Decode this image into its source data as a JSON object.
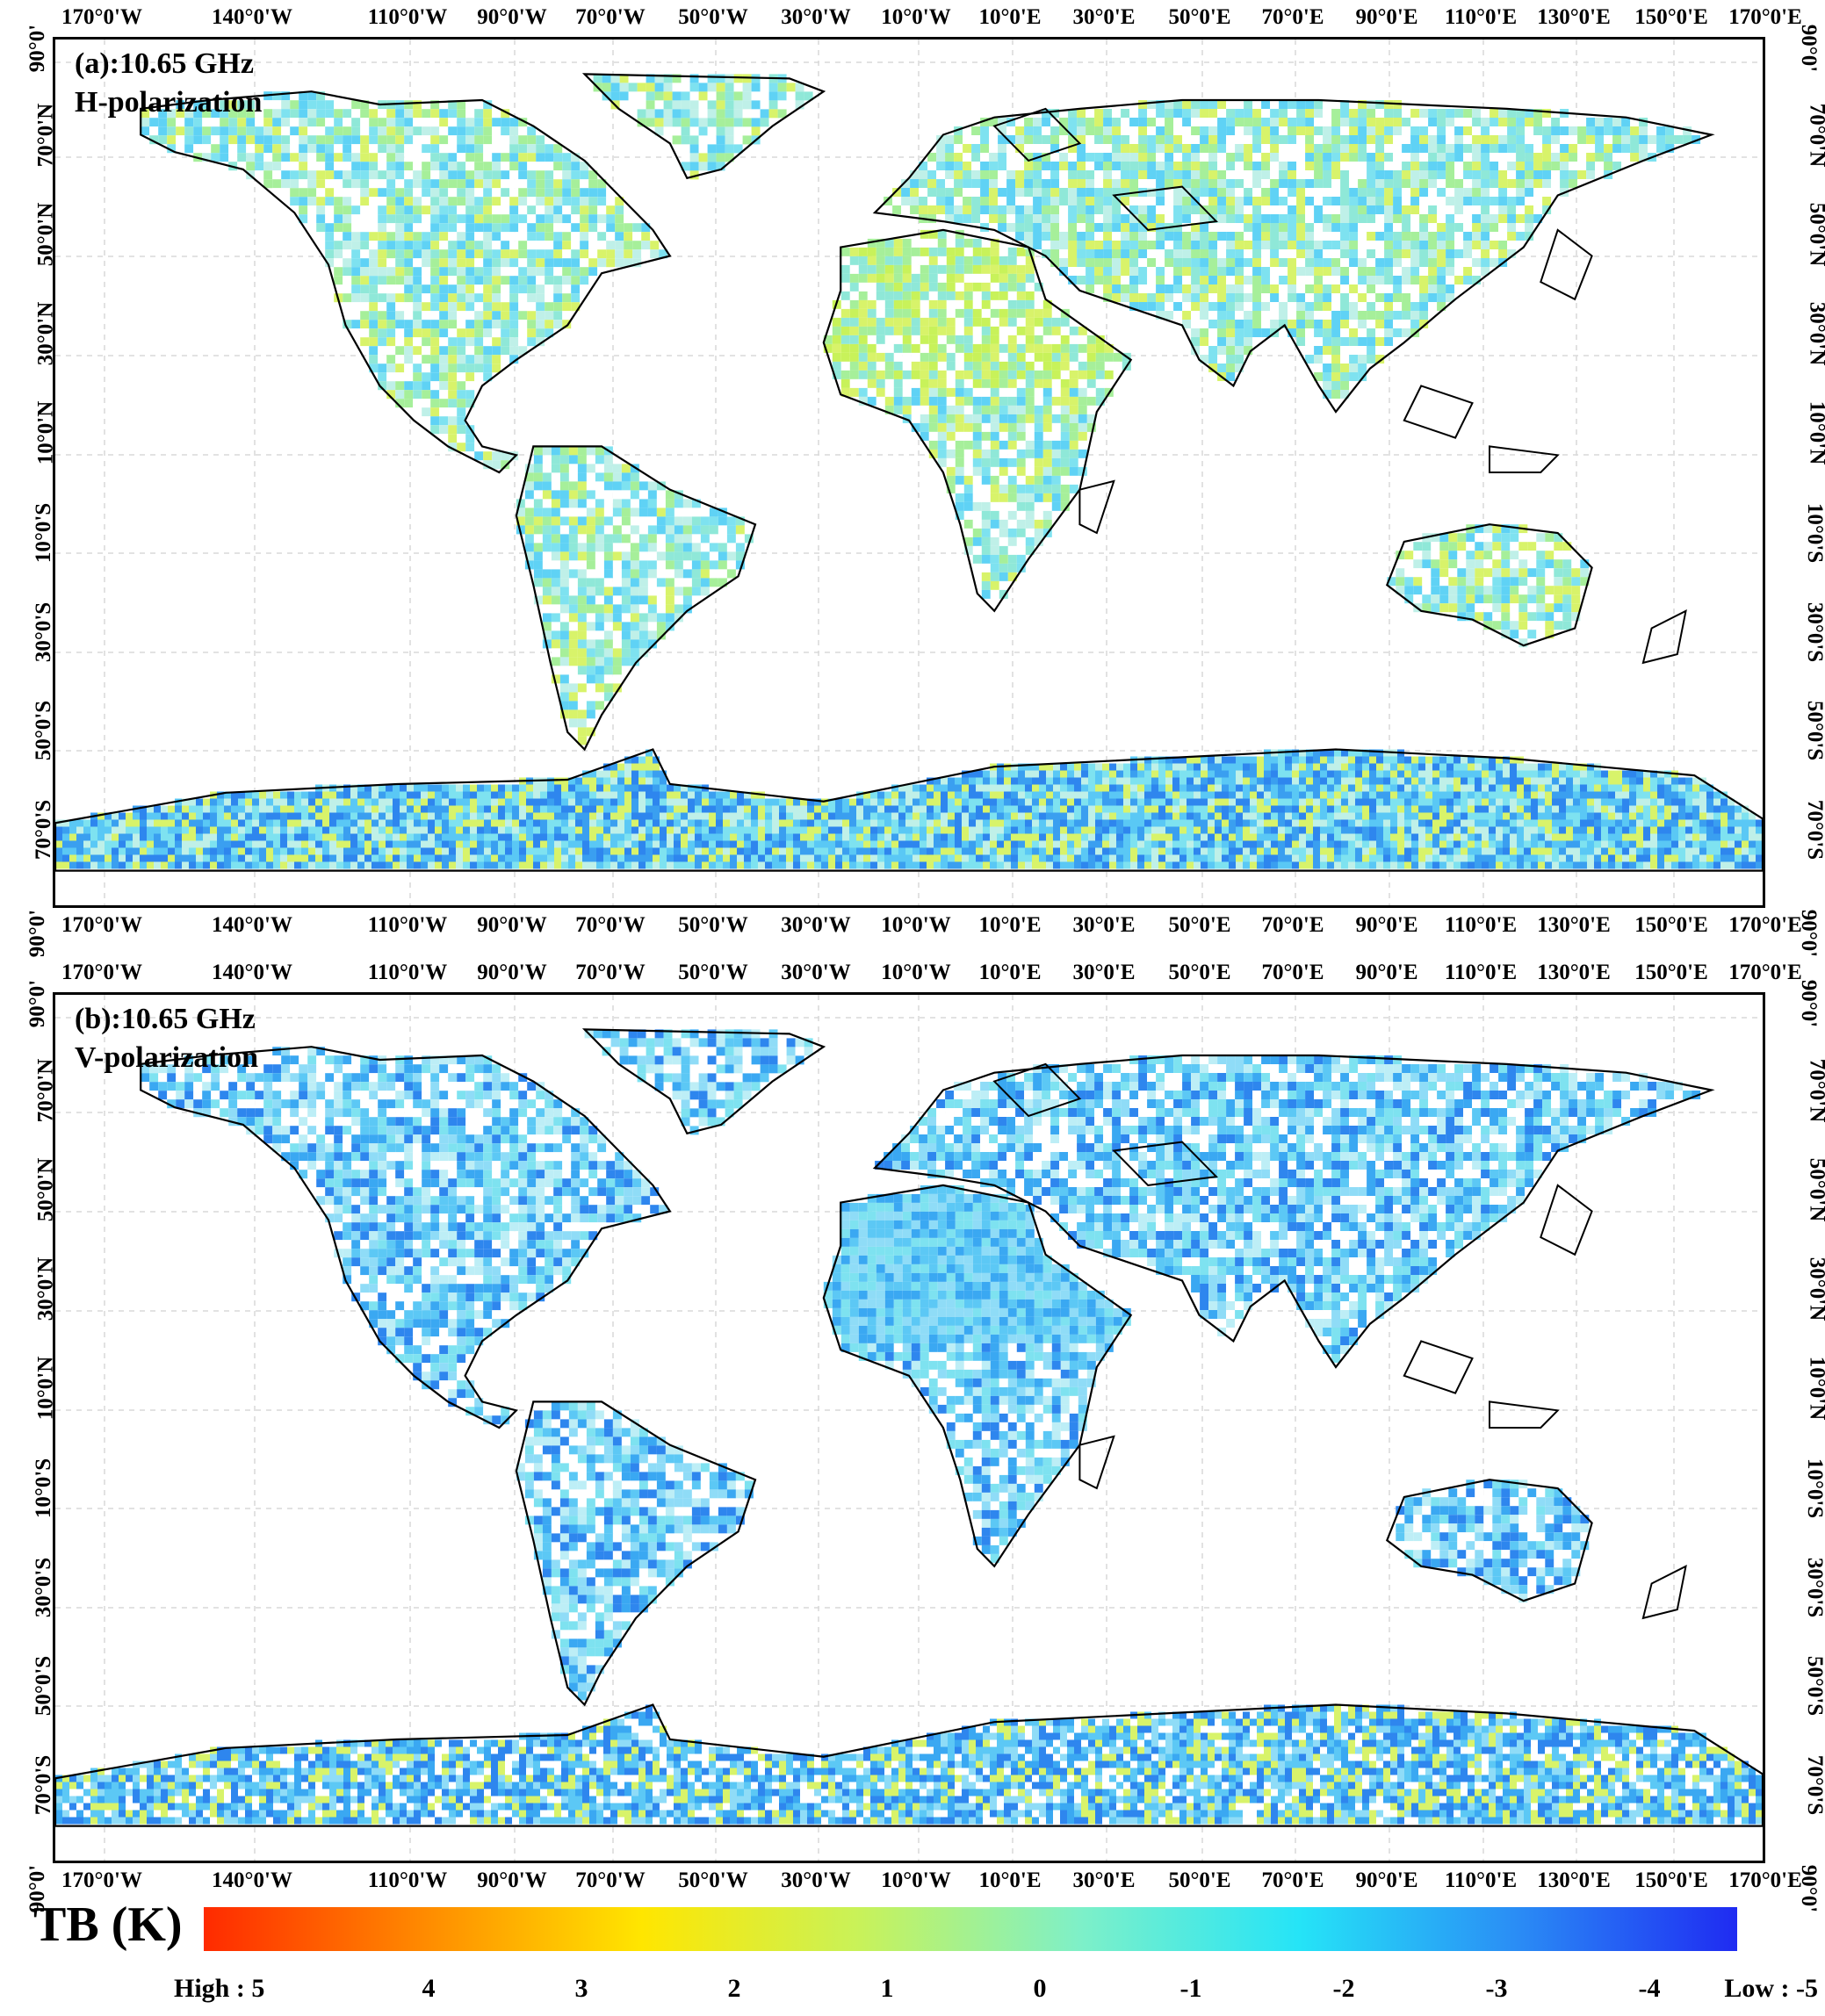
{
  "panels": [
    {
      "title_line1": "(a):10.65 GHz",
      "title_line2": "H-polarization",
      "tone": "h"
    },
    {
      "title_line1": "(b):10.65 GHz",
      "title_line2": "V-polarization",
      "tone": "v"
    }
  ],
  "lon_labels": [
    "170°0'W",
    "140°0'W",
    "110°0'W",
    "90°0'W",
    "70°0'W",
    "50°0'W",
    "30°0'W",
    "10°0'W",
    "10°0'E",
    "30°0'E",
    "50°0'E",
    "70°0'E",
    "90°0'E",
    "110°0'E",
    "130°0'E",
    "150°0'E",
    "170°0'E"
  ],
  "lat_labels": [
    "90°0'",
    "70°0'N",
    "50°0'N",
    "30°0'N",
    "10°0'N",
    "10°0'S",
    "30°0'S",
    "50°0'S",
    "70°0'S",
    "90°0'"
  ],
  "legend": {
    "title": "TB (K)",
    "labels": [
      "High : 5",
      "4",
      "3",
      "2",
      "1",
      "0",
      "-1",
      "-2",
      "-3",
      "-4",
      "Low : -5"
    ],
    "colors": [
      "#ff2a00",
      "#ff8a00",
      "#ffe600",
      "#c8f25a",
      "#7ef0c8",
      "#25e4f7",
      "#2a8cf5",
      "#1f2bf2"
    ]
  }
}
